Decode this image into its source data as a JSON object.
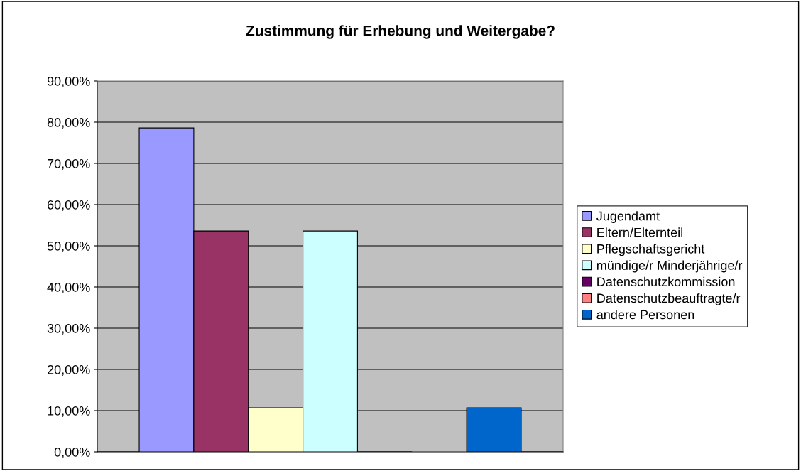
{
  "chart_data": {
    "type": "bar",
    "title": "Zustimmung für Erhebung und Weitergabe?",
    "categories": [
      null
    ],
    "series": [
      {
        "name": "Jugendamt",
        "color": "#9999ff",
        "values": [
          78.6
        ]
      },
      {
        "name": "Eltern/Elternteil",
        "color": "#993366",
        "values": [
          53.6
        ]
      },
      {
        "name": "Pflegschaftsgericht",
        "color": "#ffffcc",
        "values": [
          10.7
        ]
      },
      {
        "name": "mündige/r Minderjährige/r",
        "color": "#ccffff",
        "values": [
          53.6
        ]
      },
      {
        "name": "Datenschutzkommission",
        "color": "#660066",
        "values": [
          0
        ]
      },
      {
        "name": "Datenschutzbeauftragte/r",
        "color": "#ff8080",
        "values": [
          0
        ]
      },
      {
        "name": "andere Personen",
        "color": "#0066cc",
        "values": [
          10.7
        ]
      }
    ],
    "ylim": [
      0,
      90
    ],
    "yticks": [
      {
        "value": 0,
        "label": "0,00%"
      },
      {
        "value": 10,
        "label": "10,00%"
      },
      {
        "value": 20,
        "label": "20,00%"
      },
      {
        "value": 30,
        "label": "30,00%"
      },
      {
        "value": 40,
        "label": "40,00%"
      },
      {
        "value": 50,
        "label": "50,00%"
      },
      {
        "value": 60,
        "label": "60,00%"
      },
      {
        "value": 70,
        "label": "70,00%"
      },
      {
        "value": 80,
        "label": "80,00%"
      },
      {
        "value": 90,
        "label": "90,00%"
      }
    ],
    "grid": "y",
    "legend": "right"
  }
}
